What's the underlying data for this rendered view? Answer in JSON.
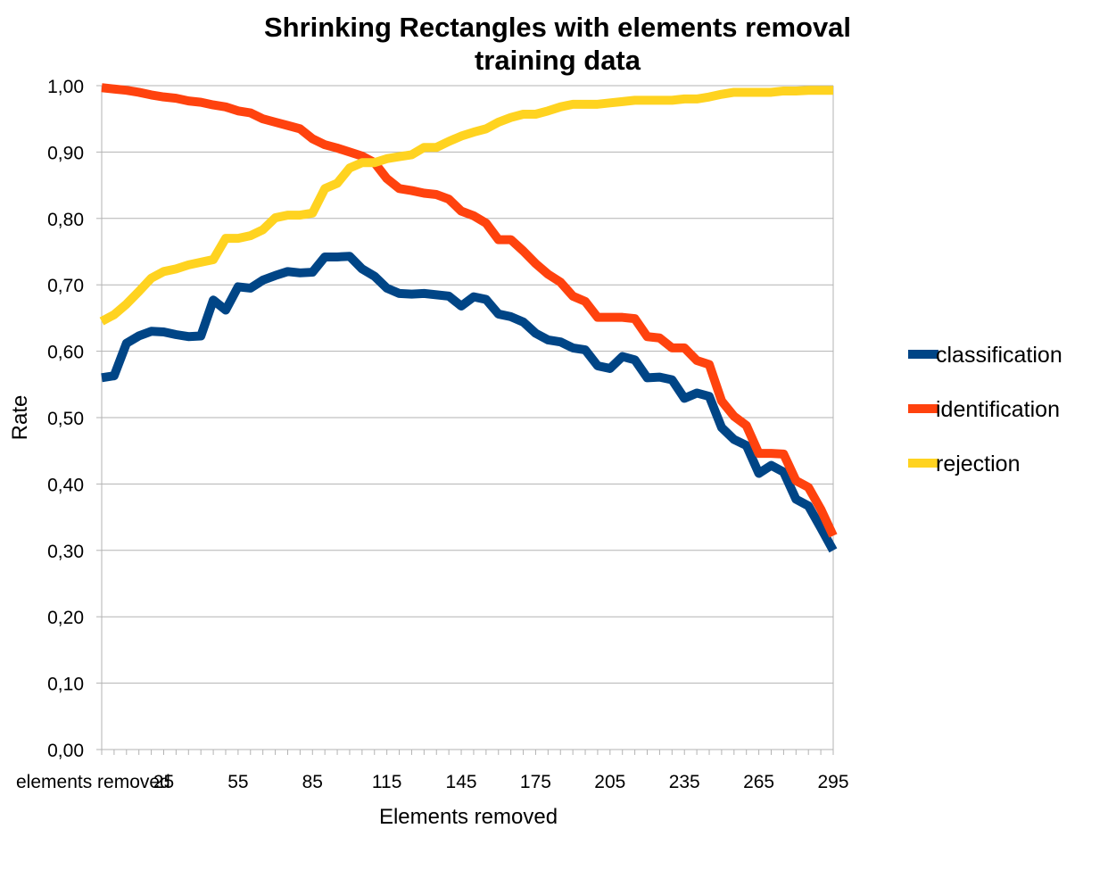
{
  "chart_data": {
    "type": "line",
    "title": "Shrinking Rectangles with elements removal",
    "subtitle": "training data",
    "xlabel": "Elements removed",
    "ylabel": "Rate",
    "ylim": [
      0,
      1
    ],
    "grid": true,
    "legend_position": "right",
    "y_tick_labels": [
      "0,00",
      "0,10",
      "0,20",
      "0,30",
      "0,40",
      "0,50",
      "0,60",
      "0,70",
      "0,80",
      "0,90",
      "1,00"
    ],
    "x_tick_labels": [
      {
        "x": 0,
        "label": "elements removed"
      },
      {
        "x": 25,
        "label": "25"
      },
      {
        "x": 55,
        "label": "55"
      },
      {
        "x": 85,
        "label": "85"
      },
      {
        "x": 115,
        "label": "115"
      },
      {
        "x": 145,
        "label": "145"
      },
      {
        "x": 175,
        "label": "175"
      },
      {
        "x": 205,
        "label": "205"
      },
      {
        "x": 235,
        "label": "235"
      },
      {
        "x": 265,
        "label": "265"
      },
      {
        "x": 295,
        "label": "295"
      }
    ],
    "x": [
      0,
      5,
      10,
      15,
      20,
      25,
      30,
      35,
      40,
      45,
      50,
      55,
      60,
      65,
      70,
      75,
      80,
      85,
      90,
      95,
      100,
      105,
      110,
      115,
      120,
      125,
      130,
      135,
      140,
      145,
      150,
      155,
      160,
      165,
      170,
      175,
      180,
      185,
      190,
      195,
      200,
      205,
      210,
      215,
      220,
      225,
      230,
      235,
      240,
      245,
      250,
      255,
      260,
      265,
      270,
      275,
      280,
      285,
      290,
      295
    ],
    "series": [
      {
        "name": "classification",
        "color": "#004586",
        "values": [
          0.56,
          0.563,
          0.612,
          0.623,
          0.63,
          0.629,
          0.625,
          0.622,
          0.623,
          0.677,
          0.662,
          0.697,
          0.695,
          0.707,
          0.714,
          0.72,
          0.718,
          0.719,
          0.742,
          0.742,
          0.743,
          0.724,
          0.713,
          0.695,
          0.687,
          0.686,
          0.687,
          0.685,
          0.683,
          0.668,
          0.682,
          0.678,
          0.656,
          0.652,
          0.644,
          0.627,
          0.617,
          0.614,
          0.605,
          0.602,
          0.578,
          0.574,
          0.592,
          0.587,
          0.56,
          0.561,
          0.557,
          0.529,
          0.537,
          0.532,
          0.485,
          0.467,
          0.458,
          0.416,
          0.428,
          0.418,
          0.377,
          0.367,
          0.334,
          0.3
        ]
      },
      {
        "name": "identification",
        "color": "#ff420e",
        "values": [
          0.997,
          0.995,
          0.993,
          0.99,
          0.986,
          0.983,
          0.981,
          0.977,
          0.975,
          0.971,
          0.968,
          0.962,
          0.959,
          0.95,
          0.945,
          0.94,
          0.935,
          0.92,
          0.911,
          0.906,
          0.9,
          0.894,
          0.884,
          0.86,
          0.845,
          0.842,
          0.838,
          0.836,
          0.829,
          0.811,
          0.804,
          0.793,
          0.768,
          0.768,
          0.751,
          0.732,
          0.716,
          0.704,
          0.683,
          0.675,
          0.651,
          0.651,
          0.651,
          0.649,
          0.622,
          0.62,
          0.605,
          0.605,
          0.586,
          0.58,
          0.525,
          0.502,
          0.488,
          0.446,
          0.446,
          0.445,
          0.405,
          0.395,
          0.362,
          0.322
        ]
      },
      {
        "name": "rejection",
        "color": "#ffd320",
        "values": [
          0.645,
          0.655,
          0.671,
          0.69,
          0.71,
          0.72,
          0.724,
          0.73,
          0.734,
          0.738,
          0.77,
          0.77,
          0.774,
          0.783,
          0.801,
          0.805,
          0.805,
          0.808,
          0.845,
          0.853,
          0.876,
          0.884,
          0.884,
          0.89,
          0.893,
          0.896,
          0.907,
          0.907,
          0.916,
          0.924,
          0.93,
          0.935,
          0.945,
          0.952,
          0.957,
          0.957,
          0.962,
          0.968,
          0.972,
          0.972,
          0.972,
          0.974,
          0.976,
          0.978,
          0.978,
          0.978,
          0.978,
          0.98,
          0.98,
          0.983,
          0.987,
          0.99,
          0.99,
          0.99,
          0.99,
          0.992,
          0.992,
          0.993,
          0.993,
          0.993
        ]
      }
    ]
  }
}
